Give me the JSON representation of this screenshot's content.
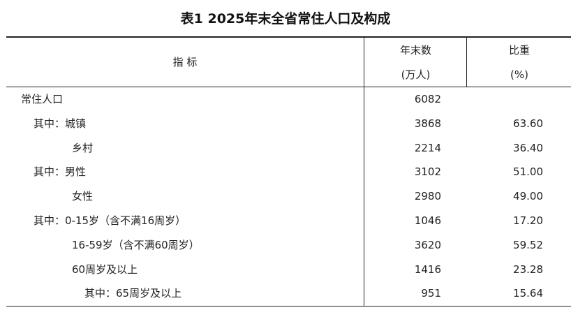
{
  "title": "表1  2025年末全省常住人口及构成",
  "header": {
    "indicator": "指 标",
    "count_line1": "年末数",
    "count_line2": "(万人)",
    "share_line1": "比重",
    "share_line2": "(%)"
  },
  "rows": [
    {
      "label": "常住人口",
      "value": "6082",
      "share": ""
    },
    {
      "label": "其中：城镇",
      "value": "3868",
      "share": "63.60"
    },
    {
      "label": "乡村",
      "value": "2214",
      "share": "36.40"
    },
    {
      "label": "其中：男性",
      "value": "3102",
      "share": "51.00"
    },
    {
      "label": "女性",
      "value": "2980",
      "share": "49.00"
    },
    {
      "label": "其中：0-15岁（含不满16周岁）",
      "value": "1046",
      "share": "17.20"
    },
    {
      "label": "16-59岁（含不满60周岁）",
      "value": "3620",
      "share": "59.52"
    },
    {
      "label": "60周岁及以上",
      "value": "1416",
      "share": "23.28"
    },
    {
      "label": "其中：65周岁及以上",
      "value": "951",
      "share": "15.64"
    }
  ]
}
